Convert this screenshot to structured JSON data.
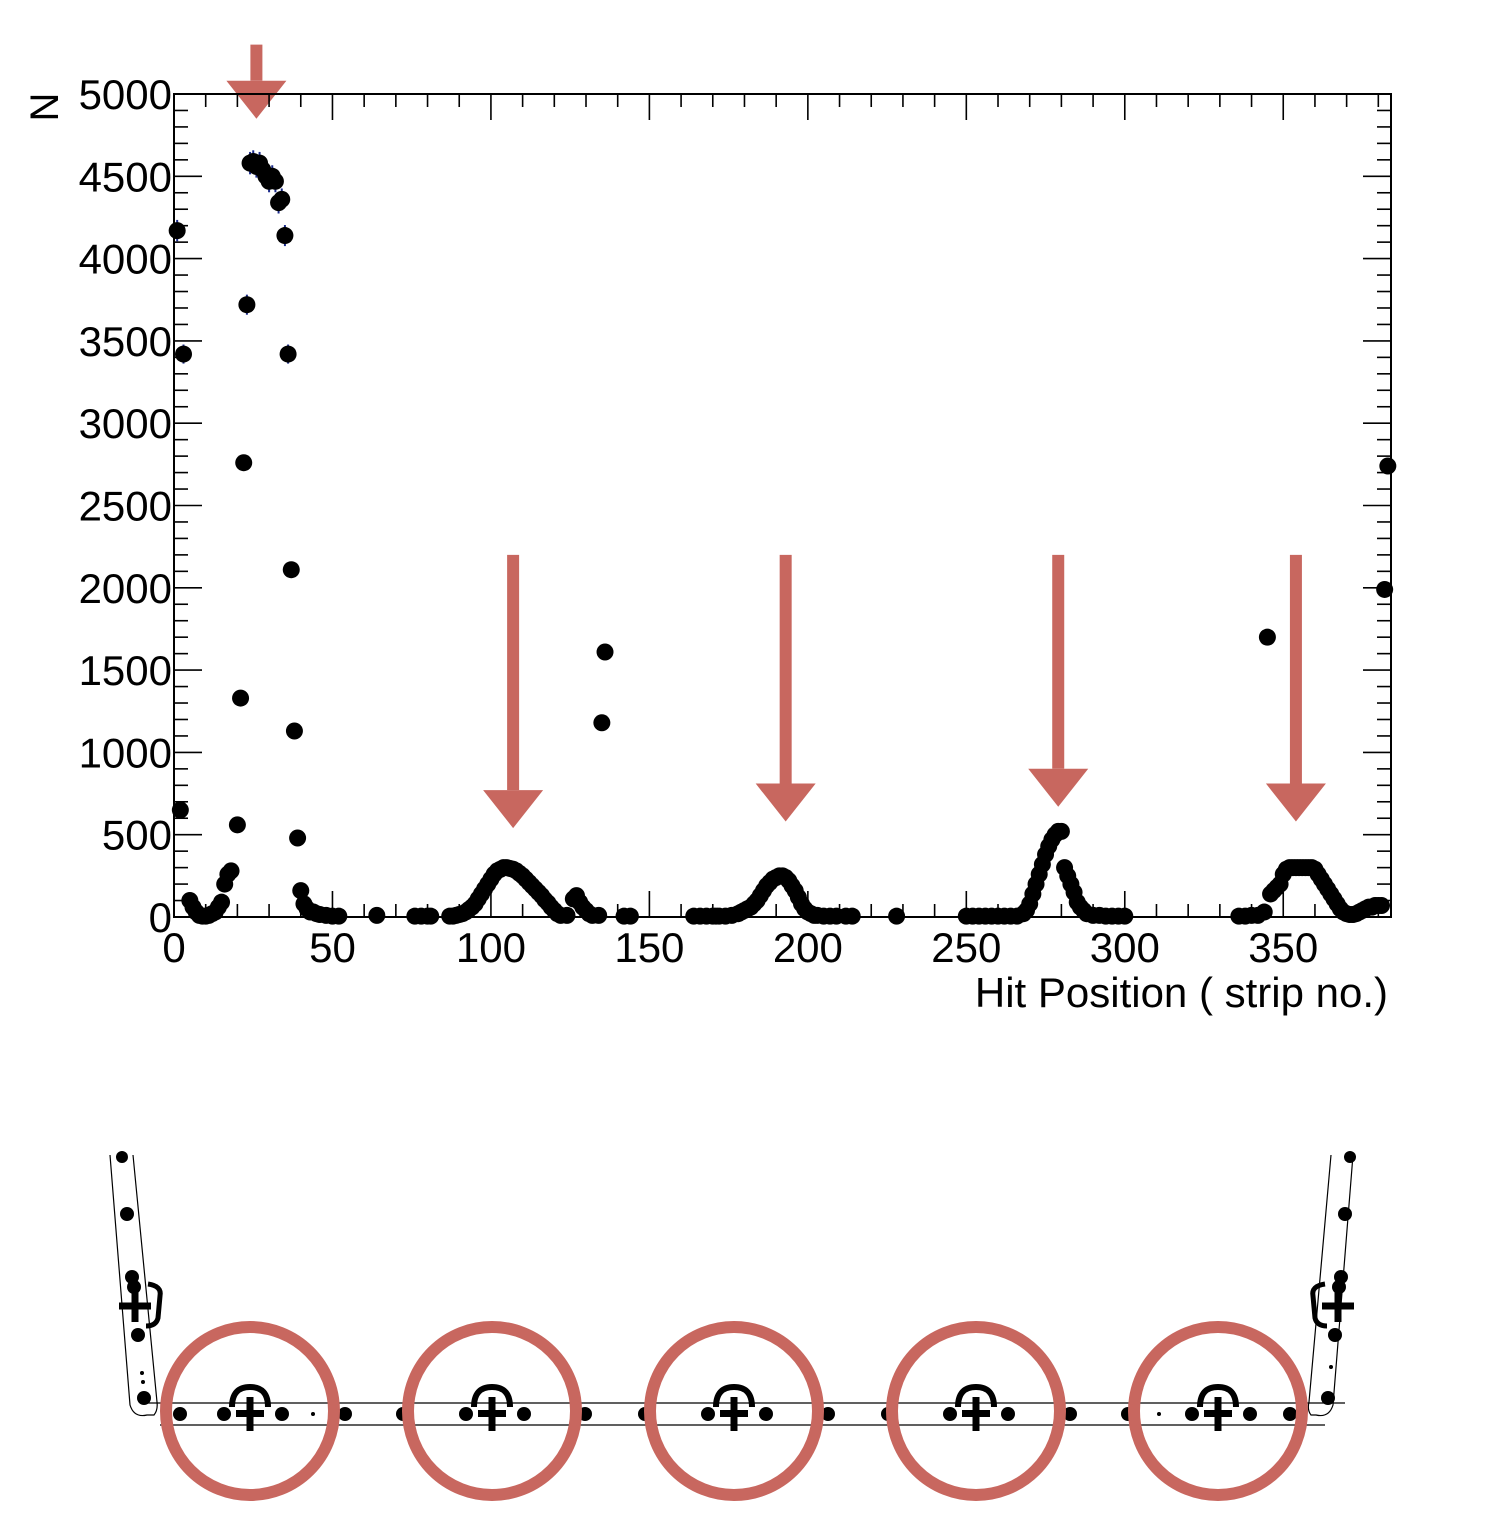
{
  "chart_data": {
    "type": "scatter",
    "title": "",
    "xlabel": "Hit Position ( strip no.)",
    "ylabel": "N",
    "xlim": [
      0,
      384
    ],
    "ylim": [
      0,
      5000
    ],
    "xticks": [
      0,
      50,
      100,
      150,
      200,
      250,
      300,
      350
    ],
    "yticks": [
      0,
      500,
      1000,
      1500,
      2000,
      2500,
      3000,
      3500,
      4000,
      4500,
      5000
    ],
    "x_tick_labels": [
      "0",
      "50",
      "100",
      "150",
      "200",
      "250",
      "300",
      "350"
    ],
    "y_tick_labels": [
      "0",
      "500",
      "1000",
      "1500",
      "2000",
      "2500",
      "3000",
      "3500",
      "4000",
      "4500",
      "5000"
    ],
    "grid": false,
    "points": [
      [
        1,
        4170
      ],
      [
        2,
        650
      ],
      [
        3,
        3420
      ],
      [
        5,
        100
      ],
      [
        6,
        60
      ],
      [
        7,
        30
      ],
      [
        8,
        10
      ],
      [
        9,
        5
      ],
      [
        10,
        5
      ],
      [
        11,
        10
      ],
      [
        12,
        20
      ],
      [
        13,
        30
      ],
      [
        14,
        60
      ],
      [
        15,
        90
      ],
      [
        16,
        200
      ],
      [
        17,
        260
      ],
      [
        18,
        280
      ],
      [
        20,
        560
      ],
      [
        21,
        1330
      ],
      [
        22,
        2760
      ],
      [
        23,
        3720
      ],
      [
        24,
        4580
      ],
      [
        25,
        4590
      ],
      [
        26,
        4560
      ],
      [
        27,
        4580
      ],
      [
        28,
        4540
      ],
      [
        29,
        4500
      ],
      [
        30,
        4470
      ],
      [
        31,
        4500
      ],
      [
        32,
        4470
      ],
      [
        33,
        4340
      ],
      [
        34,
        4360
      ],
      [
        35,
        4140
      ],
      [
        36,
        3420
      ],
      [
        37,
        2110
      ],
      [
        38,
        1130
      ],
      [
        39,
        480
      ],
      [
        40,
        160
      ],
      [
        41,
        80
      ],
      [
        42,
        50
      ],
      [
        43,
        30
      ],
      [
        44,
        30
      ],
      [
        45,
        20
      ],
      [
        46,
        15
      ],
      [
        48,
        10
      ],
      [
        50,
        5
      ],
      [
        52,
        5
      ],
      [
        64,
        10
      ],
      [
        76,
        5
      ],
      [
        78,
        5
      ],
      [
        80,
        5
      ],
      [
        81,
        5
      ],
      [
        87,
        5
      ],
      [
        88,
        5
      ],
      [
        89,
        10
      ],
      [
        90,
        15
      ],
      [
        91,
        20
      ],
      [
        92,
        30
      ],
      [
        93,
        45
      ],
      [
        94,
        60
      ],
      [
        95,
        80
      ],
      [
        96,
        110
      ],
      [
        97,
        140
      ],
      [
        98,
        170
      ],
      [
        99,
        200
      ],
      [
        100,
        230
      ],
      [
        101,
        260
      ],
      [
        102,
        280
      ],
      [
        103,
        290
      ],
      [
        104,
        300
      ],
      [
        105,
        300
      ],
      [
        106,
        295
      ],
      [
        107,
        290
      ],
      [
        108,
        280
      ],
      [
        109,
        265
      ],
      [
        110,
        250
      ],
      [
        111,
        230
      ],
      [
        112,
        210
      ],
      [
        113,
        190
      ],
      [
        114,
        170
      ],
      [
        115,
        150
      ],
      [
        116,
        130
      ],
      [
        117,
        105
      ],
      [
        118,
        85
      ],
      [
        119,
        60
      ],
      [
        120,
        40
      ],
      [
        121,
        20
      ],
      [
        122,
        10
      ],
      [
        124,
        10
      ],
      [
        126,
        110
      ],
      [
        127,
        130
      ],
      [
        128,
        90
      ],
      [
        129,
        60
      ],
      [
        130,
        40
      ],
      [
        131,
        20
      ],
      [
        132,
        10
      ],
      [
        134,
        10
      ],
      [
        135,
        1180
      ],
      [
        136,
        1610
      ],
      [
        142,
        5
      ],
      [
        144,
        5
      ],
      [
        164,
        5
      ],
      [
        166,
        5
      ],
      [
        168,
        5
      ],
      [
        170,
        5
      ],
      [
        171,
        5
      ],
      [
        172,
        5
      ],
      [
        174,
        5
      ],
      [
        176,
        10
      ],
      [
        178,
        20
      ],
      [
        179,
        30
      ],
      [
        180,
        40
      ],
      [
        181,
        50
      ],
      [
        182,
        60
      ],
      [
        183,
        80
      ],
      [
        184,
        100
      ],
      [
        185,
        130
      ],
      [
        186,
        160
      ],
      [
        187,
        190
      ],
      [
        188,
        210
      ],
      [
        189,
        230
      ],
      [
        190,
        240
      ],
      [
        191,
        250
      ],
      [
        192,
        250
      ],
      [
        193,
        240
      ],
      [
        194,
        220
      ],
      [
        195,
        190
      ],
      [
        196,
        160
      ],
      [
        197,
        120
      ],
      [
        198,
        80
      ],
      [
        199,
        50
      ],
      [
        200,
        30
      ],
      [
        201,
        20
      ],
      [
        202,
        10
      ],
      [
        203,
        10
      ],
      [
        205,
        5
      ],
      [
        207,
        5
      ],
      [
        209,
        5
      ],
      [
        212,
        5
      ],
      [
        214,
        5
      ],
      [
        228,
        5
      ],
      [
        250,
        5
      ],
      [
        252,
        5
      ],
      [
        254,
        5
      ],
      [
        256,
        5
      ],
      [
        258,
        5
      ],
      [
        260,
        5
      ],
      [
        262,
        5
      ],
      [
        264,
        5
      ],
      [
        266,
        5
      ],
      [
        268,
        20
      ],
      [
        269,
        40
      ],
      [
        270,
        80
      ],
      [
        271,
        140
      ],
      [
        272,
        200
      ],
      [
        273,
        260
      ],
      [
        274,
        320
      ],
      [
        275,
        380
      ],
      [
        276,
        430
      ],
      [
        277,
        470
      ],
      [
        278,
        500
      ],
      [
        279,
        520
      ],
      [
        280,
        520
      ],
      [
        281,
        300
      ],
      [
        282,
        250
      ],
      [
        283,
        200
      ],
      [
        284,
        150
      ],
      [
        285,
        90
      ],
      [
        286,
        60
      ],
      [
        287,
        40
      ],
      [
        288,
        20
      ],
      [
        290,
        10
      ],
      [
        292,
        10
      ],
      [
        294,
        5
      ],
      [
        296,
        5
      ],
      [
        298,
        5
      ],
      [
        300,
        5
      ],
      [
        336,
        5
      ],
      [
        338,
        5
      ],
      [
        340,
        10
      ],
      [
        342,
        10
      ],
      [
        344,
        30
      ],
      [
        345,
        1700
      ],
      [
        346,
        140
      ],
      [
        347,
        160
      ],
      [
        348,
        180
      ],
      [
        349,
        200
      ],
      [
        350,
        260
      ],
      [
        351,
        290
      ],
      [
        352,
        300
      ],
      [
        353,
        300
      ],
      [
        354,
        300
      ],
      [
        355,
        300
      ],
      [
        356,
        300
      ],
      [
        357,
        300
      ],
      [
        358,
        300
      ],
      [
        359,
        300
      ],
      [
        360,
        290
      ],
      [
        361,
        260
      ],
      [
        362,
        230
      ],
      [
        363,
        200
      ],
      [
        364,
        170
      ],
      [
        365,
        140
      ],
      [
        366,
        110
      ],
      [
        367,
        80
      ],
      [
        368,
        50
      ],
      [
        369,
        30
      ],
      [
        370,
        20
      ],
      [
        371,
        15
      ],
      [
        372,
        15
      ],
      [
        373,
        20
      ],
      [
        374,
        30
      ],
      [
        375,
        40
      ],
      [
        376,
        50
      ],
      [
        377,
        60
      ],
      [
        378,
        60
      ],
      [
        379,
        70
      ],
      [
        380,
        70
      ],
      [
        381,
        70
      ],
      [
        382,
        1990
      ],
      [
        383,
        2740
      ]
    ],
    "error_bars": [
      [
        1,
        4170,
        65
      ],
      [
        3,
        3420,
        58
      ],
      [
        24,
        4580,
        68
      ],
      [
        25,
        4590,
        68
      ],
      [
        26,
        4560,
        68
      ],
      [
        27,
        4580,
        68
      ],
      [
        28,
        4540,
        67
      ],
      [
        29,
        4500,
        67
      ],
      [
        30,
        4470,
        67
      ],
      [
        31,
        4500,
        67
      ],
      [
        32,
        4470,
        67
      ],
      [
        33,
        4340,
        66
      ],
      [
        34,
        4360,
        66
      ],
      [
        35,
        4140,
        64
      ],
      [
        36,
        3420,
        58
      ],
      [
        23,
        3720,
        61
      ]
    ],
    "arrow_markers": [
      {
        "x": 26,
        "y_top": 5300,
        "y_tip": 4850
      },
      {
        "x": 107,
        "y_top": 2200,
        "y_tip": 540
      },
      {
        "x": 193,
        "y_top": 2200,
        "y_tip": 580
      },
      {
        "x": 279,
        "y_top": 2200,
        "y_tip": 670
      },
      {
        "x": 354,
        "y_top": 2200,
        "y_tip": 580
      }
    ]
  },
  "diagram": {
    "description_symbols": "detector strip layout with highlighted modules",
    "module_count": 5
  },
  "colors": {
    "marker": "#000000",
    "accent_arrow": "#c8675f",
    "frame": "#000000",
    "error_bar": "#1a2a8a"
  }
}
